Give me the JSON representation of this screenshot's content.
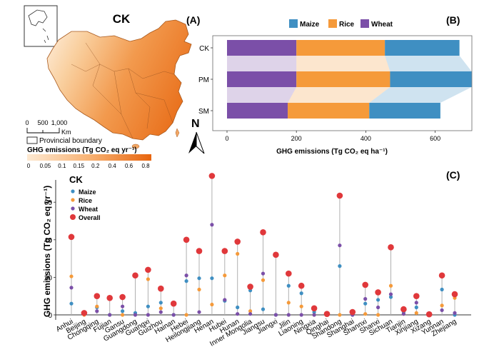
{
  "colors": {
    "maize": "#3f8fc2",
    "rice": "#f59a3a",
    "wheat": "#7b4fa8",
    "overall": "#e0383b",
    "map_fill_low": "#fde6cc",
    "map_fill_high": "#e8650e"
  },
  "panel_a": {
    "title": "CK",
    "label": "(A)",
    "scale_ticks": [
      "0",
      "500",
      "1,000"
    ],
    "scale_unit": "Km",
    "boundary_label": "Provincial boundary",
    "legend_title": "GHG emissions (Tg CO₂ eq  yr⁻¹)",
    "legend_ticks": [
      "0",
      "0.05",
      "0.1",
      "0.15",
      "0.2",
      "0.4",
      "0.6",
      "0.8"
    ],
    "north_label": "N"
  },
  "chart_data": [
    {
      "type": "bar",
      "panel": "(B)",
      "orientation": "horizontal-stacked",
      "categories": [
        "CK",
        "PM",
        "SM"
      ],
      "series": [
        {
          "name": "Wheat",
          "values": [
            200,
            200,
            175
          ]
        },
        {
          "name": "Rice",
          "values": [
            255,
            270,
            235
          ]
        },
        {
          "name": "Maize",
          "values": [
            215,
            235,
            205
          ]
        }
      ],
      "legend": [
        "Maize",
        "Rice",
        "Wheat"
      ],
      "xlabel": "GHG emissions (Tg CO₂ eq ha⁻¹)",
      "xticks": [
        "0",
        "200",
        "400",
        "600"
      ],
      "xlim": [
        0,
        700
      ]
    },
    {
      "type": "scatter",
      "panel": "(C)",
      "title": "CK",
      "ylabel": "GHG emissions (Tg CO₂ eq yr⁻¹)",
      "yticks": [
        "0",
        "20",
        "40",
        "60"
      ],
      "ylim": [
        -2,
        72
      ],
      "legend": [
        "Maize",
        "Rice",
        "Wheat",
        "Overall"
      ],
      "categories": [
        "Anhui",
        "Beijing",
        "Chongqing",
        "Fujian",
        "Gansu",
        "Guangdong",
        "Guangxi",
        "Guizhou",
        "Hainan",
        "Hebei",
        "Heilongjiang",
        "Henan",
        "Hubei",
        "Hunan",
        "Inner Mongolia",
        "Jiangsu",
        "Jiangxi",
        "Jilin",
        "Liaoning",
        "Ningxia",
        "Qinghai",
        "Shandong",
        "Shanghai",
        "Shannxi",
        "Shanxi",
        "Sichuan",
        "Tianjin",
        "Xinjiang",
        "Xizang",
        "Yunnan",
        "Zhejiang"
      ],
      "series": [
        {
          "name": "Maize",
          "values": [
            6,
            0.5,
            4,
            0,
            2,
            1,
            4.5,
            6.5,
            0,
            18,
            19.5,
            19.5,
            7.5,
            4,
            13,
            3,
            0,
            15.5,
            11.5,
            1.5,
            0,
            26,
            0,
            6,
            8,
            9.5,
            1.5,
            4,
            0,
            13.5,
            0
          ]
        },
        {
          "name": "Rice",
          "values": [
            20.5,
            0,
            4.5,
            9,
            0,
            20.5,
            19,
            3.5,
            5.5,
            0,
            13.5,
            5.5,
            21,
            32.5,
            2,
            18.5,
            32,
            6.5,
            4.5,
            0,
            0,
            0,
            1,
            0.5,
            0,
            15.5,
            0.5,
            1,
            0,
            5,
            9
          ]
        },
        {
          "name": "Wheat",
          "values": [
            14.5,
            0.5,
            2,
            0,
            4.5,
            0,
            0,
            1.5,
            0,
            21,
            1.5,
            48,
            8,
            0.5,
            0.5,
            22,
            0,
            0,
            0,
            0,
            0,
            37,
            0,
            8.5,
            4,
            11,
            0.5,
            6.5,
            0,
            2.5,
            1
          ]
        },
        {
          "name": "Overall",
          "values": [
            41.5,
            1,
            10,
            9,
            9.5,
            21,
            24,
            14,
            6,
            40,
            34,
            74,
            34,
            39,
            15,
            44,
            32,
            22,
            15.5,
            3.5,
            0.5,
            63.5,
            1.5,
            16,
            12,
            36,
            3,
            10,
            0.3,
            21,
            11
          ]
        }
      ]
    }
  ]
}
